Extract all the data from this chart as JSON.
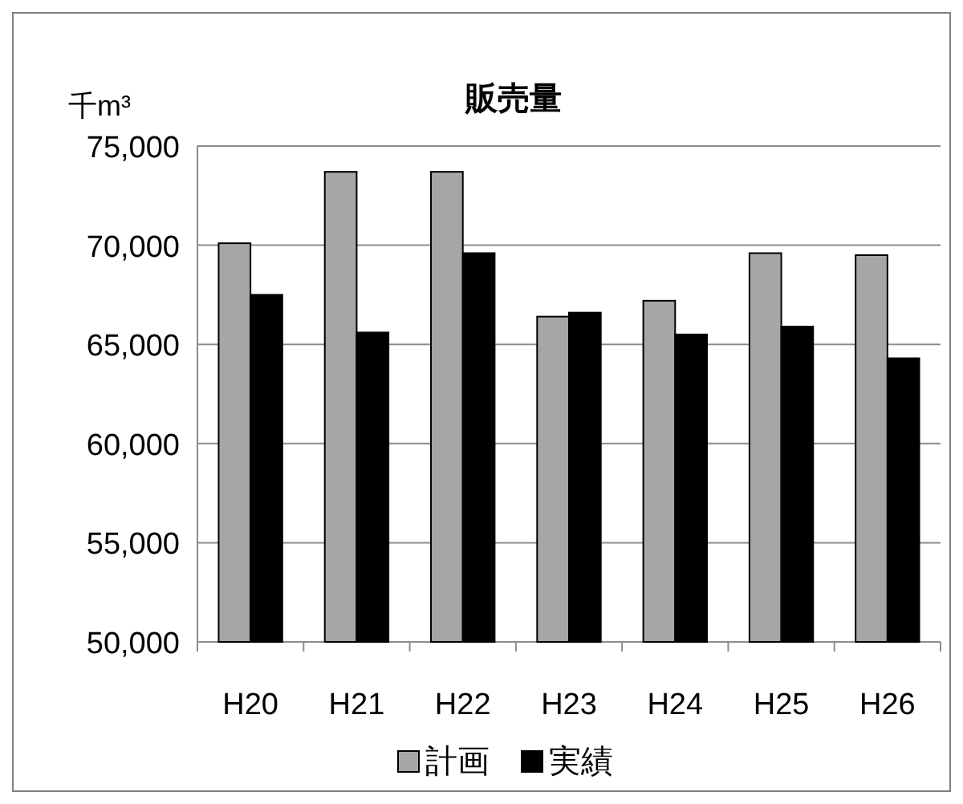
{
  "chart_data": {
    "type": "bar",
    "title": "販売量",
    "ylabel": "千m³",
    "categories": [
      "H20",
      "H21",
      "H22",
      "H23",
      "H24",
      "H25",
      "H26"
    ],
    "series": [
      {
        "name": "計画",
        "color": "#a6a6a6",
        "values": [
          70100,
          73700,
          73700,
          66400,
          67200,
          69600,
          69500
        ]
      },
      {
        "name": "実績",
        "color": "#000000",
        "values": [
          67500,
          65600,
          69600,
          66600,
          65500,
          65900,
          64300
        ]
      }
    ],
    "ylim": [
      50000,
      75000
    ],
    "yticks": [
      {
        "value": 50000,
        "label": "50,000"
      },
      {
        "value": 55000,
        "label": "55,000"
      },
      {
        "value": 60000,
        "label": "60,000"
      },
      {
        "value": 65000,
        "label": "65,000"
      },
      {
        "value": 70000,
        "label": "70,000"
      },
      {
        "value": 75000,
        "label": "75,000"
      }
    ],
    "grid": "y",
    "legend": "bottom"
  }
}
